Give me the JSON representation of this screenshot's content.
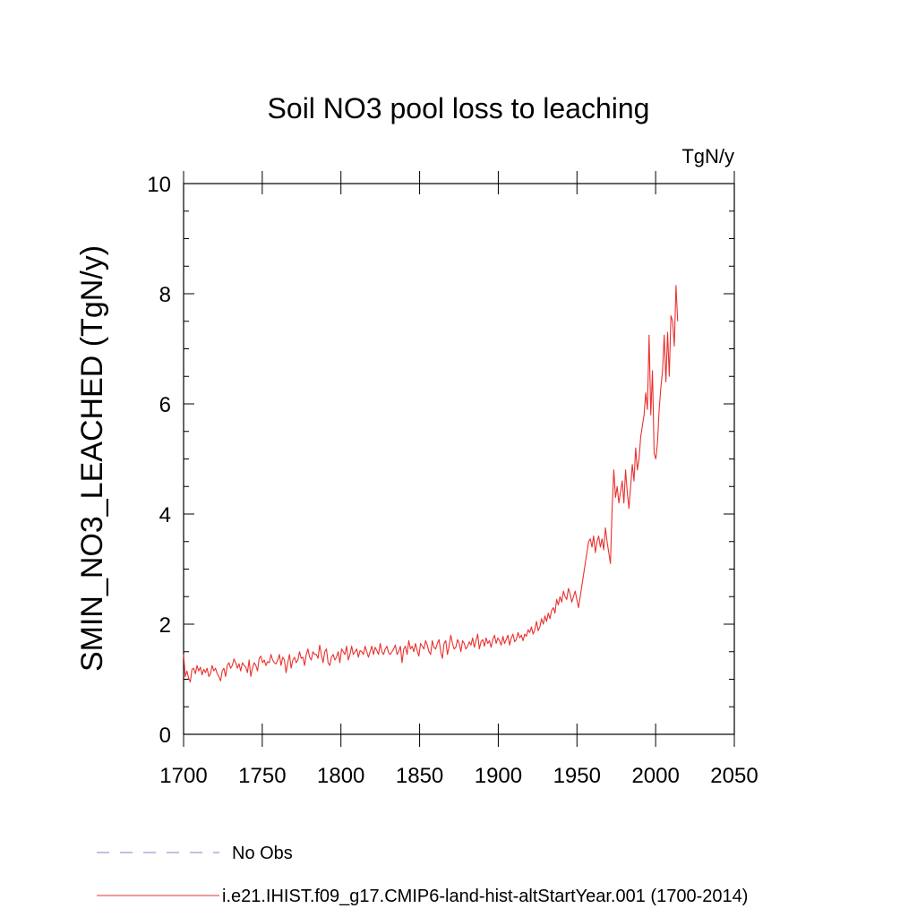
{
  "chart_data": {
    "type": "line",
    "title": "Soil NO3 pool loss to leaching",
    "units_label": "TgN/y",
    "ylabel": "SMIN_NO3_LEACHED  (TgN/y)",
    "xlabel": "",
    "xlim": [
      1700,
      2050
    ],
    "ylim": [
      0,
      10
    ],
    "x_ticks": [
      1700,
      1750,
      1800,
      1850,
      1900,
      1950,
      2000,
      2050
    ],
    "y_ticks": [
      0,
      2,
      4,
      6,
      8,
      10
    ],
    "grid": false,
    "legend_position": "bottom-left",
    "series": [
      {
        "name": "No Obs",
        "color": "#8a7fc4",
        "dash": "dashed",
        "x": [],
        "y": []
      },
      {
        "name": "i.e21.IHIST.f09_g17.CMIP6-land-hist-altStartYear.001 (1700-2014)",
        "color": "#e8312f",
        "dash": "solid",
        "x_start": 1700,
        "x_end": 2014,
        "y": [
          1.45,
          1.05,
          1.15,
          1.02,
          0.95,
          1.18,
          1.2,
          1.1,
          1.25,
          1.15,
          1.22,
          1.08,
          1.18,
          1.12,
          1.2,
          1.05,
          1.1,
          1.25,
          1.15,
          1.2,
          1.1,
          1.05,
          0.97,
          1.15,
          1.2,
          1.05,
          1.25,
          1.3,
          1.2,
          1.25,
          1.37,
          1.3,
          1.2,
          1.28,
          1.15,
          1.3,
          1.25,
          1.22,
          1.12,
          1.35,
          1.05,
          1.2,
          1.3,
          1.25,
          1.15,
          1.38,
          1.42,
          1.3,
          1.35,
          1.25,
          1.32,
          1.3,
          1.45,
          1.35,
          1.3,
          1.28,
          1.35,
          1.45,
          1.25,
          1.4,
          1.35,
          1.12,
          1.3,
          1.45,
          1.2,
          1.35,
          1.4,
          1.3,
          1.35,
          1.5,
          1.38,
          1.4,
          1.25,
          1.45,
          1.55,
          1.4,
          1.35,
          1.5,
          1.45,
          1.45,
          1.38,
          1.62,
          1.45,
          1.3,
          1.5,
          1.55,
          1.3,
          1.25,
          1.4,
          1.45,
          1.35,
          1.4,
          1.5,
          1.3,
          1.55,
          1.5,
          1.45,
          1.6,
          1.35,
          1.45,
          1.6,
          1.45,
          1.5,
          1.55,
          1.4,
          1.52,
          1.5,
          1.45,
          1.6,
          1.5,
          1.4,
          1.5,
          1.6,
          1.45,
          1.58,
          1.52,
          1.45,
          1.65,
          1.5,
          1.45,
          1.55,
          1.6,
          1.48,
          1.45,
          1.5,
          1.55,
          1.62,
          1.45,
          1.5,
          1.6,
          1.3,
          1.55,
          1.6,
          1.45,
          1.7,
          1.55,
          1.6,
          1.5,
          1.65,
          1.52,
          1.42,
          1.65,
          1.6,
          1.55,
          1.7,
          1.62,
          1.5,
          1.45,
          1.7,
          1.58,
          1.55,
          1.65,
          1.72,
          1.5,
          1.38,
          1.65,
          1.7,
          1.45,
          1.6,
          1.8,
          1.65,
          1.55,
          1.58,
          1.72,
          1.65,
          1.5,
          1.7,
          1.65,
          1.55,
          1.6,
          1.68,
          1.62,
          1.75,
          1.58,
          1.7,
          1.82,
          1.55,
          1.68,
          1.72,
          1.6,
          1.75,
          1.65,
          1.7,
          1.58,
          1.72,
          1.8,
          1.65,
          1.75,
          1.7,
          1.62,
          1.78,
          1.65,
          1.72,
          1.8,
          1.62,
          1.75,
          1.82,
          1.68,
          1.72,
          1.85,
          1.75,
          1.8,
          1.7,
          1.82,
          1.78,
          1.9,
          1.85,
          1.95,
          1.82,
          1.9,
          2.05,
          1.88,
          1.95,
          2.1,
          2.0,
          2.15,
          2.05,
          2.2,
          2.1,
          2.25,
          2.3,
          2.2,
          2.45,
          2.35,
          2.5,
          2.4,
          2.6,
          2.5,
          2.45,
          2.65,
          2.55,
          2.4,
          2.5,
          2.6,
          2.45,
          2.3,
          2.5,
          2.7,
          2.9,
          3.1,
          3.3,
          3.5,
          3.55,
          3.4,
          3.6,
          3.3,
          3.5,
          3.6,
          3.4,
          3.55,
          3.35,
          3.75,
          3.5,
          3.3,
          3.1,
          4.1,
          4.8,
          4.3,
          4.5,
          4.2,
          4.4,
          4.6,
          4.2,
          4.8,
          4.4,
          4.1,
          4.5,
          4.9,
          4.6,
          5.2,
          4.8,
          5.0,
          5.4,
          5.6,
          5.8,
          6.2,
          5.9,
          7.25,
          5.8,
          6.6,
          5.1,
          5.0,
          5.3,
          5.9,
          6.3,
          6.6,
          7.25,
          6.4,
          7.3,
          6.5,
          7.6,
          7.5,
          7.05,
          8.15,
          7.5
        ]
      }
    ]
  }
}
